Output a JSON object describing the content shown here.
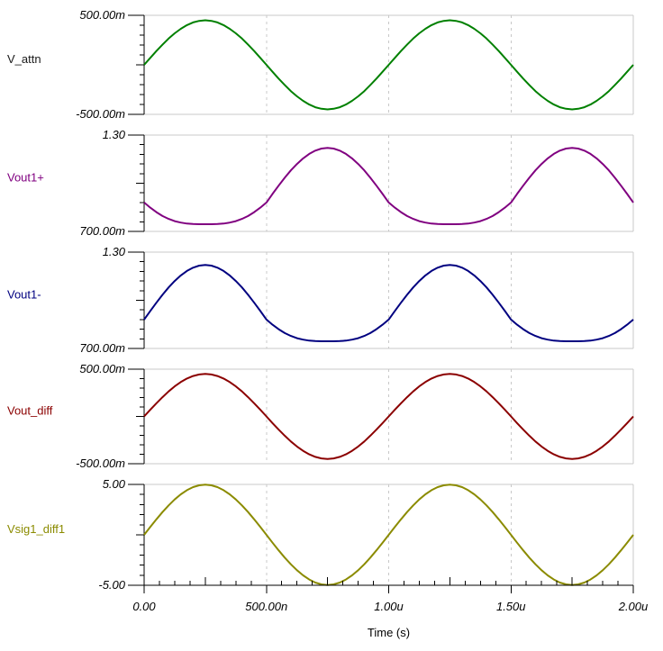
{
  "colors": {
    "background": "#ffffff",
    "grid": "#c8c8c8",
    "axis": "#000000",
    "tick_label": "#000000"
  },
  "chart_data": {
    "type": "line",
    "title": "",
    "xlabel": "Time (s)",
    "x_range": [
      0,
      2
    ],
    "x_unit": "us",
    "grid": "on",
    "x_ticks": [
      {
        "t": 0,
        "label": "0.00"
      },
      {
        "t": 0.5,
        "label": "500.00n"
      },
      {
        "t": 1,
        "label": "1.00u"
      },
      {
        "t": 1.5,
        "label": "1.50u"
      },
      {
        "t": 2,
        "label": "2.00u"
      }
    ],
    "t": [
      0,
      0.025,
      0.05,
      0.075,
      0.1,
      0.125,
      0.15,
      0.175,
      0.2,
      0.225,
      0.25,
      0.275,
      0.3,
      0.325,
      0.35,
      0.375,
      0.4,
      0.425,
      0.45,
      0.475,
      0.5,
      0.525,
      0.55,
      0.575,
      0.6,
      0.625,
      0.65,
      0.675,
      0.7,
      0.725,
      0.75,
      0.775,
      0.8,
      0.825,
      0.85,
      0.875,
      0.9,
      0.925,
      0.95,
      0.975,
      1,
      1.025,
      1.05,
      1.075,
      1.1,
      1.125,
      1.15,
      1.175,
      1.2,
      1.225,
      1.25,
      1.275,
      1.3,
      1.325,
      1.35,
      1.375,
      1.4,
      1.425,
      1.45,
      1.475,
      1.5,
      1.525,
      1.55,
      1.575,
      1.6,
      1.625,
      1.65,
      1.675,
      1.7,
      1.725,
      1.75,
      1.775,
      1.8,
      1.825,
      1.85,
      1.875,
      1.9,
      1.925,
      1.95,
      1.975,
      2
    ],
    "panels": [
      {
        "name": "V_attn",
        "label_color": "#1a1a1a",
        "trace_color": "#008000",
        "ylim": [
          -0.5,
          0.5
        ],
        "y_top_label": "500.00m",
        "y_bottom_label": "-500.00m",
        "values": [
          0,
          0.07,
          0.139,
          0.204,
          0.265,
          0.318,
          0.364,
          0.401,
          0.428,
          0.444,
          0.45,
          0.444,
          0.428,
          0.401,
          0.364,
          0.318,
          0.265,
          0.204,
          0.139,
          0.07,
          0,
          -0.07,
          -0.139,
          -0.204,
          -0.265,
          -0.318,
          -0.364,
          -0.401,
          -0.428,
          -0.444,
          -0.45,
          -0.444,
          -0.428,
          -0.401,
          -0.364,
          -0.318,
          -0.265,
          -0.204,
          -0.139,
          -0.07,
          0,
          0.07,
          0.139,
          0.204,
          0.265,
          0.318,
          0.364,
          0.401,
          0.428,
          0.444,
          0.45,
          0.444,
          0.428,
          0.401,
          0.364,
          0.318,
          0.265,
          0.204,
          0.139,
          0.07,
          0,
          -0.07,
          -0.139,
          -0.204,
          -0.265,
          -0.318,
          -0.364,
          -0.401,
          -0.428,
          -0.444,
          -0.45,
          -0.444,
          -0.428,
          -0.401,
          -0.364,
          -0.318,
          -0.265,
          -0.204,
          -0.139,
          -0.07,
          0
        ]
      },
      {
        "name": "Vout1+",
        "label_color": "#800080",
        "trace_color": "#800080",
        "ylim": [
          0.7,
          1.3
        ],
        "y_top_label": "1.30",
        "y_bottom_label": "700.00m",
        "values": [
          0.88,
          0.848,
          0.82,
          0.796,
          0.778,
          0.764,
          0.755,
          0.749,
          0.746,
          0.745,
          0.745,
          0.745,
          0.746,
          0.749,
          0.755,
          0.764,
          0.778,
          0.796,
          0.82,
          0.848,
          0.88,
          0.933,
          0.985,
          1.034,
          1.08,
          1.12,
          1.155,
          1.183,
          1.203,
          1.216,
          1.22,
          1.216,
          1.203,
          1.183,
          1.155,
          1.12,
          1.08,
          1.034,
          0.985,
          0.933,
          0.88,
          0.848,
          0.82,
          0.796,
          0.778,
          0.764,
          0.755,
          0.749,
          0.746,
          0.745,
          0.745,
          0.745,
          0.746,
          0.749,
          0.755,
          0.764,
          0.778,
          0.796,
          0.82,
          0.848,
          0.88,
          0.933,
          0.985,
          1.034,
          1.08,
          1.12,
          1.155,
          1.183,
          1.203,
          1.216,
          1.22,
          1.216,
          1.203,
          1.183,
          1.155,
          1.12,
          1.08,
          1.034,
          0.985,
          0.933,
          0.88
        ]
      },
      {
        "name": "Vout1-",
        "label_color": "#000080",
        "trace_color": "#000080",
        "ylim": [
          0.7,
          1.3
        ],
        "y_top_label": "1.30",
        "y_bottom_label": "700.00m",
        "values": [
          0.88,
          0.933,
          0.985,
          1.034,
          1.08,
          1.12,
          1.155,
          1.183,
          1.203,
          1.216,
          1.22,
          1.216,
          1.203,
          1.183,
          1.155,
          1.12,
          1.08,
          1.034,
          0.985,
          0.933,
          0.88,
          0.848,
          0.82,
          0.796,
          0.778,
          0.764,
          0.755,
          0.749,
          0.746,
          0.745,
          0.745,
          0.745,
          0.746,
          0.749,
          0.755,
          0.764,
          0.778,
          0.796,
          0.82,
          0.848,
          0.88,
          0.933,
          0.985,
          1.034,
          1.08,
          1.12,
          1.155,
          1.183,
          1.203,
          1.216,
          1.22,
          1.216,
          1.203,
          1.183,
          1.155,
          1.12,
          1.08,
          1.034,
          0.985,
          0.933,
          0.88,
          0.848,
          0.82,
          0.796,
          0.778,
          0.764,
          0.755,
          0.749,
          0.746,
          0.745,
          0.745,
          0.745,
          0.746,
          0.749,
          0.755,
          0.764,
          0.778,
          0.796,
          0.82,
          0.848,
          0.88
        ]
      },
      {
        "name": "Vout_diff",
        "label_color": "#8b0000",
        "trace_color": "#8b0000",
        "ylim": [
          -0.5,
          0.5
        ],
        "y_top_label": "500.00m",
        "y_bottom_label": "-500.00m",
        "values": [
          0,
          0.07,
          0.139,
          0.204,
          0.265,
          0.318,
          0.364,
          0.401,
          0.428,
          0.444,
          0.45,
          0.444,
          0.428,
          0.401,
          0.364,
          0.318,
          0.265,
          0.204,
          0.139,
          0.07,
          0,
          -0.07,
          -0.139,
          -0.204,
          -0.265,
          -0.318,
          -0.364,
          -0.401,
          -0.428,
          -0.444,
          -0.45,
          -0.444,
          -0.428,
          -0.401,
          -0.364,
          -0.318,
          -0.265,
          -0.204,
          -0.139,
          -0.07,
          0,
          0.07,
          0.139,
          0.204,
          0.265,
          0.318,
          0.364,
          0.401,
          0.428,
          0.444,
          0.45,
          0.444,
          0.428,
          0.401,
          0.364,
          0.318,
          0.265,
          0.204,
          0.139,
          0.07,
          0,
          -0.07,
          -0.139,
          -0.204,
          -0.265,
          -0.318,
          -0.364,
          -0.401,
          -0.428,
          -0.444,
          -0.45,
          -0.444,
          -0.428,
          -0.401,
          -0.364,
          -0.318,
          -0.265,
          -0.204,
          -0.139,
          -0.07,
          0
        ]
      },
      {
        "name": "Vsig1_diff1",
        "label_color": "#8b8b00",
        "trace_color": "#8b8b00",
        "ylim": [
          -5,
          5
        ],
        "y_top_label": "5.00",
        "y_bottom_label": "-5.00",
        "values": [
          0,
          0.78,
          1.54,
          2.26,
          2.92,
          3.51,
          4.02,
          4.43,
          4.73,
          4.91,
          4.97,
          4.91,
          4.73,
          4.43,
          4.02,
          3.51,
          2.92,
          2.26,
          1.54,
          0.78,
          0,
          -0.78,
          -1.54,
          -2.26,
          -2.92,
          -3.51,
          -4.02,
          -4.43,
          -4.73,
          -4.91,
          -4.97,
          -4.91,
          -4.73,
          -4.43,
          -4.02,
          -3.51,
          -2.92,
          -2.26,
          -1.54,
          -0.78,
          0,
          0.78,
          1.54,
          2.26,
          2.92,
          3.51,
          4.02,
          4.43,
          4.73,
          4.91,
          4.97,
          4.91,
          4.73,
          4.43,
          4.02,
          3.51,
          2.92,
          2.26,
          1.54,
          0.78,
          0,
          -0.78,
          -1.54,
          -2.26,
          -2.92,
          -3.51,
          -4.02,
          -4.43,
          -4.73,
          -4.91,
          -4.97,
          -4.91,
          -4.73,
          -4.43,
          -4.02,
          -3.51,
          -2.92,
          -2.26,
          -1.54,
          -0.78,
          0
        ]
      }
    ]
  }
}
